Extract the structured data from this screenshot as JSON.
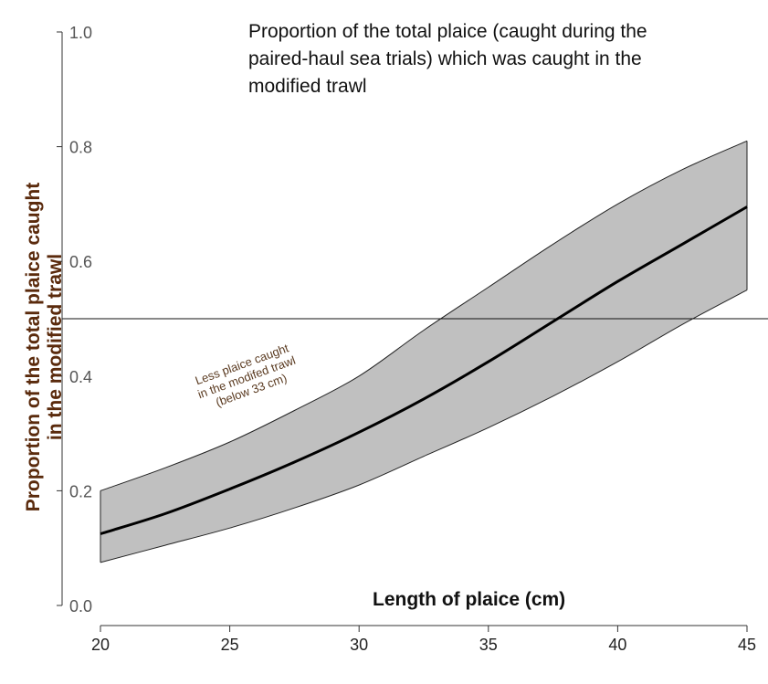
{
  "chart_data": {
    "type": "line",
    "title": [
      "Proportion of the total plaice (caught during the",
      "paired-haul sea trials) which was caught in the",
      "modified trawl"
    ],
    "xlabel": "Length of plaice (cm)",
    "ylabel": [
      "Proportion of the total plaice caught",
      "in the modified trawl"
    ],
    "xlim": [
      20,
      45
    ],
    "ylim": [
      0.0,
      1.0
    ],
    "x_ticks": [
      "20",
      "25",
      "30",
      "35",
      "40",
      "45"
    ],
    "y_ticks": [
      "0.0",
      "0.2",
      "0.4",
      "0.6",
      "0.8",
      "1.0"
    ],
    "x": [
      20,
      22.5,
      25,
      27.5,
      30,
      32.5,
      35,
      37.5,
      40,
      42.5,
      45
    ],
    "series": [
      {
        "values": [
          0.125,
          0.16,
          0.203,
          0.25,
          0.302,
          0.36,
          0.425,
          0.495,
          0.565,
          0.63,
          0.695
        ]
      }
    ],
    "ci_lower": [
      0.075,
      0.105,
      0.135,
      0.17,
      0.21,
      0.26,
      0.31,
      0.365,
      0.425,
      0.49,
      0.55
    ],
    "ci_upper": [
      0.2,
      0.24,
      0.285,
      0.34,
      0.4,
      0.48,
      0.555,
      0.63,
      0.7,
      0.76,
      0.81
    ],
    "reference_line": {
      "y": 0.5
    },
    "annotation": [
      "Less plaice caught",
      "in the modifed trawl",
      "(below 33 cm)"
    ],
    "grid": false,
    "colors": {
      "band_fill": "#c0c0c0",
      "band_edge": "#222222",
      "line": "#000000",
      "axis": "#333333",
      "ylabel": "#5a2a0c"
    }
  }
}
